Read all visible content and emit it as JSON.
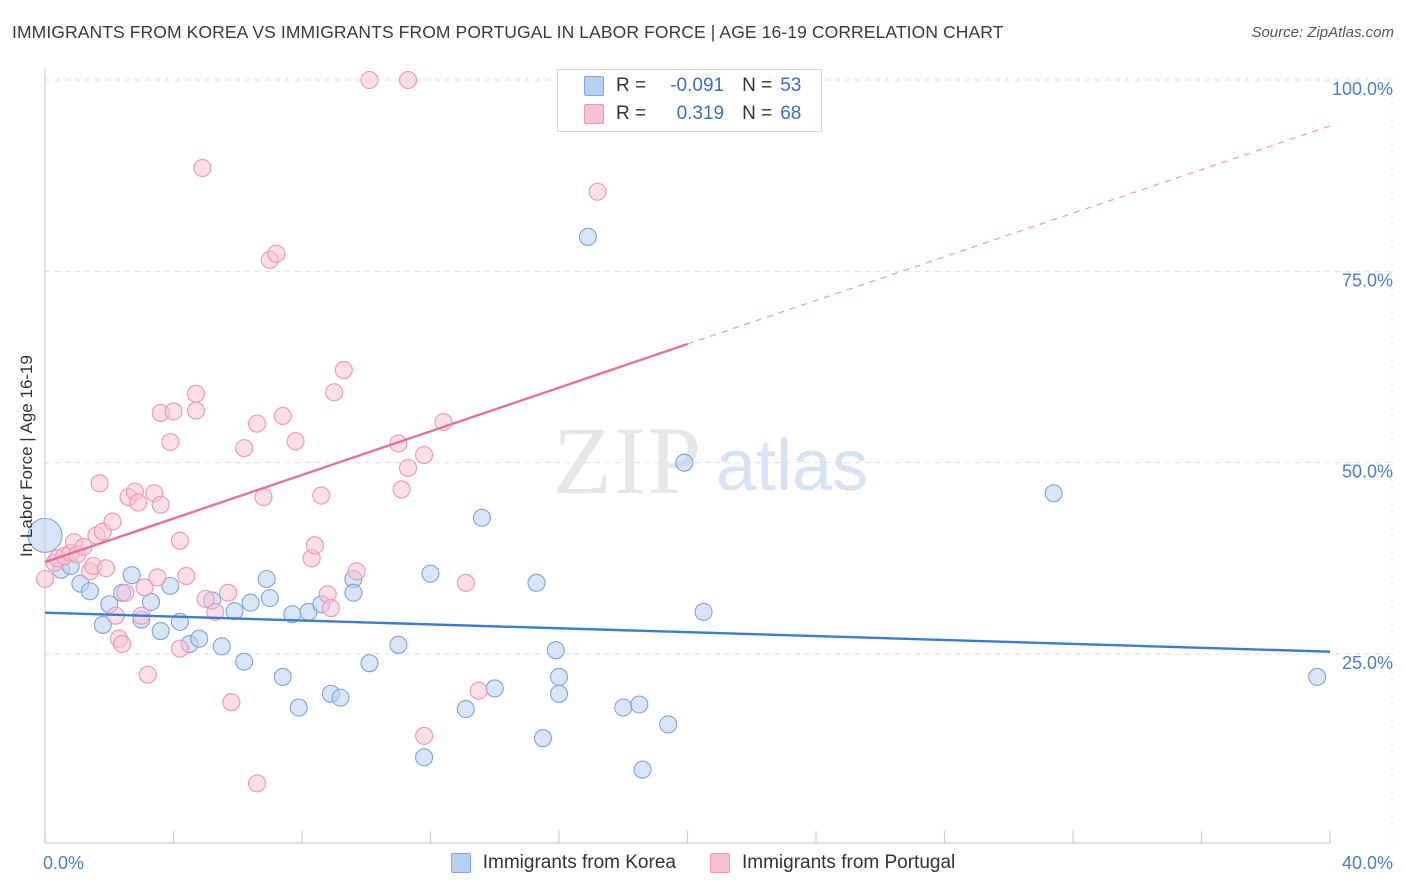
{
  "header": {
    "title": "IMMIGRANTS FROM KOREA VS IMMIGRANTS FROM PORTUGAL IN LABOR FORCE | AGE 16-19 CORRELATION CHART",
    "source": "Source: ZipAtlas.com"
  },
  "watermark": {
    "zip": "ZIP",
    "atlas": "atlas"
  },
  "legend": {
    "rows": [
      {
        "r_label": "R =",
        "r_value": "-0.091",
        "n_label": "N =",
        "n_value": "53"
      },
      {
        "r_label": "R =",
        "r_value": "0.319",
        "n_label": "N =",
        "n_value": "68"
      }
    ]
  },
  "colors": {
    "korea_fill": "#b8d0f0",
    "korea_stroke": "#7ea6dc",
    "korea_line": "#3a7bd5",
    "portugal_fill": "#f7c3d4",
    "portugal_stroke": "#ec98b4",
    "portugal_line": "#e5719a",
    "accent": "#4a7fc8"
  },
  "chart_data": {
    "type": "scatter",
    "title": "IMMIGRANTS FROM KOREA VS IMMIGRANTS FROM PORTUGAL IN LABOR FORCE | AGE 16-19 CORRELATION CHART",
    "xlabel": "",
    "ylabel": "In Labor Force | Age 16-19",
    "xlim": [
      0,
      40
    ],
    "ylim": [
      0,
      102
    ],
    "x_tick_labels": [
      "0.0%",
      "40.0%"
    ],
    "y_ticks": [
      25,
      50,
      75,
      100
    ],
    "y_tick_labels": [
      "25.0%",
      "50.0%",
      "75.0%",
      "100.0%"
    ],
    "grid": true,
    "legend_position": "top-center",
    "series": [
      {
        "name": "Immigrants from Korea",
        "r": -0.091,
        "n": 53,
        "trend": {
          "x": [
            0,
            40
          ],
          "y": [
            30.4,
            25.3
          ],
          "dashed_from_x": null
        },
        "points": [
          [
            0.0,
            40.5
          ],
          [
            0.5,
            36.0
          ],
          [
            0.8,
            36.5
          ],
          [
            1.1,
            34.2
          ],
          [
            1.4,
            33.2
          ],
          [
            1.8,
            28.8
          ],
          [
            2.0,
            31.5
          ],
          [
            2.4,
            33.0
          ],
          [
            2.7,
            35.3
          ],
          [
            3.0,
            29.5
          ],
          [
            3.3,
            31.8
          ],
          [
            3.6,
            28.0
          ],
          [
            3.9,
            33.9
          ],
          [
            4.2,
            29.2
          ],
          [
            4.5,
            26.3
          ],
          [
            4.8,
            27.0
          ],
          [
            5.2,
            32.0
          ],
          [
            5.5,
            26.0
          ],
          [
            5.9,
            30.6
          ],
          [
            6.2,
            24.0
          ],
          [
            6.4,
            31.7
          ],
          [
            6.9,
            34.8
          ],
          [
            7.0,
            32.3
          ],
          [
            7.4,
            22.0
          ],
          [
            7.7,
            30.2
          ],
          [
            7.9,
            18.0
          ],
          [
            8.2,
            30.5
          ],
          [
            8.6,
            31.5
          ],
          [
            8.9,
            19.8
          ],
          [
            9.2,
            19.3
          ],
          [
            9.6,
            34.8
          ],
          [
            9.6,
            33.0
          ],
          [
            10.1,
            23.8
          ],
          [
            11.0,
            26.2
          ],
          [
            11.8,
            11.5
          ],
          [
            12.0,
            35.5
          ],
          [
            13.1,
            17.8
          ],
          [
            13.6,
            42.8
          ],
          [
            14.0,
            20.5
          ],
          [
            15.3,
            34.3
          ],
          [
            15.5,
            14.0
          ],
          [
            15.9,
            25.5
          ],
          [
            16.0,
            22.0
          ],
          [
            16.0,
            19.8
          ],
          [
            16.9,
            79.5
          ],
          [
            18.0,
            18.0
          ],
          [
            18.5,
            18.4
          ],
          [
            18.6,
            9.9
          ],
          [
            19.4,
            15.8
          ],
          [
            19.9,
            50.0
          ],
          [
            20.5,
            30.5
          ],
          [
            31.4,
            46.0
          ],
          [
            39.6,
            22.0
          ]
        ]
      },
      {
        "name": "Immigrants from Portugal",
        "r": 0.319,
        "n": 68,
        "trend": {
          "x": [
            0,
            40
          ],
          "y": [
            37.0,
            94.0
          ],
          "dashed_from_x": 20.0
        },
        "points": [
          [
            0.0,
            34.8
          ],
          [
            0.3,
            36.9
          ],
          [
            0.4,
            37.5
          ],
          [
            0.6,
            37.8
          ],
          [
            0.8,
            38.2
          ],
          [
            0.9,
            39.6
          ],
          [
            1.0,
            38.0
          ],
          [
            1.2,
            39.0
          ],
          [
            1.4,
            35.8
          ],
          [
            1.5,
            36.5
          ],
          [
            1.6,
            40.5
          ],
          [
            1.7,
            47.3
          ],
          [
            1.8,
            41.0
          ],
          [
            1.9,
            36.2
          ],
          [
            2.1,
            42.3
          ],
          [
            2.2,
            30.0
          ],
          [
            2.3,
            27.0
          ],
          [
            2.4,
            26.3
          ],
          [
            2.5,
            33.0
          ],
          [
            2.6,
            45.5
          ],
          [
            2.8,
            46.2
          ],
          [
            2.9,
            44.8
          ],
          [
            3.0,
            30.0
          ],
          [
            3.1,
            33.7
          ],
          [
            3.2,
            22.3
          ],
          [
            3.4,
            46.0
          ],
          [
            3.5,
            35.0
          ],
          [
            3.6,
            44.5
          ],
          [
            3.6,
            56.5
          ],
          [
            3.9,
            52.7
          ],
          [
            4.0,
            56.7
          ],
          [
            4.2,
            39.8
          ],
          [
            4.2,
            25.7
          ],
          [
            4.4,
            35.2
          ],
          [
            4.7,
            56.8
          ],
          [
            4.7,
            59.0
          ],
          [
            4.9,
            88.5
          ],
          [
            5.3,
            30.5
          ],
          [
            5.7,
            33.0
          ],
          [
            5.8,
            18.7
          ],
          [
            6.2,
            51.9
          ],
          [
            6.6,
            55.1
          ],
          [
            6.6,
            8.1
          ],
          [
            6.8,
            45.5
          ],
          [
            7.0,
            76.5
          ],
          [
            7.2,
            77.3
          ],
          [
            7.4,
            56.1
          ],
          [
            7.8,
            52.8
          ],
          [
            8.3,
            37.5
          ],
          [
            8.4,
            39.2
          ],
          [
            8.6,
            45.7
          ],
          [
            8.8,
            32.8
          ],
          [
            8.9,
            31.0
          ],
          [
            9.0,
            59.2
          ],
          [
            9.3,
            62.1
          ],
          [
            9.7,
            35.8
          ],
          [
            10.1,
            100.0
          ],
          [
            11.0,
            52.5
          ],
          [
            11.1,
            46.5
          ],
          [
            11.3,
            49.3
          ],
          [
            11.3,
            100.0
          ],
          [
            11.8,
            51.0
          ],
          [
            11.8,
            14.3
          ],
          [
            12.4,
            55.3
          ],
          [
            13.1,
            34.3
          ],
          [
            13.5,
            20.2
          ],
          [
            17.2,
            85.4
          ],
          [
            5.0,
            32.2
          ]
        ]
      }
    ]
  }
}
